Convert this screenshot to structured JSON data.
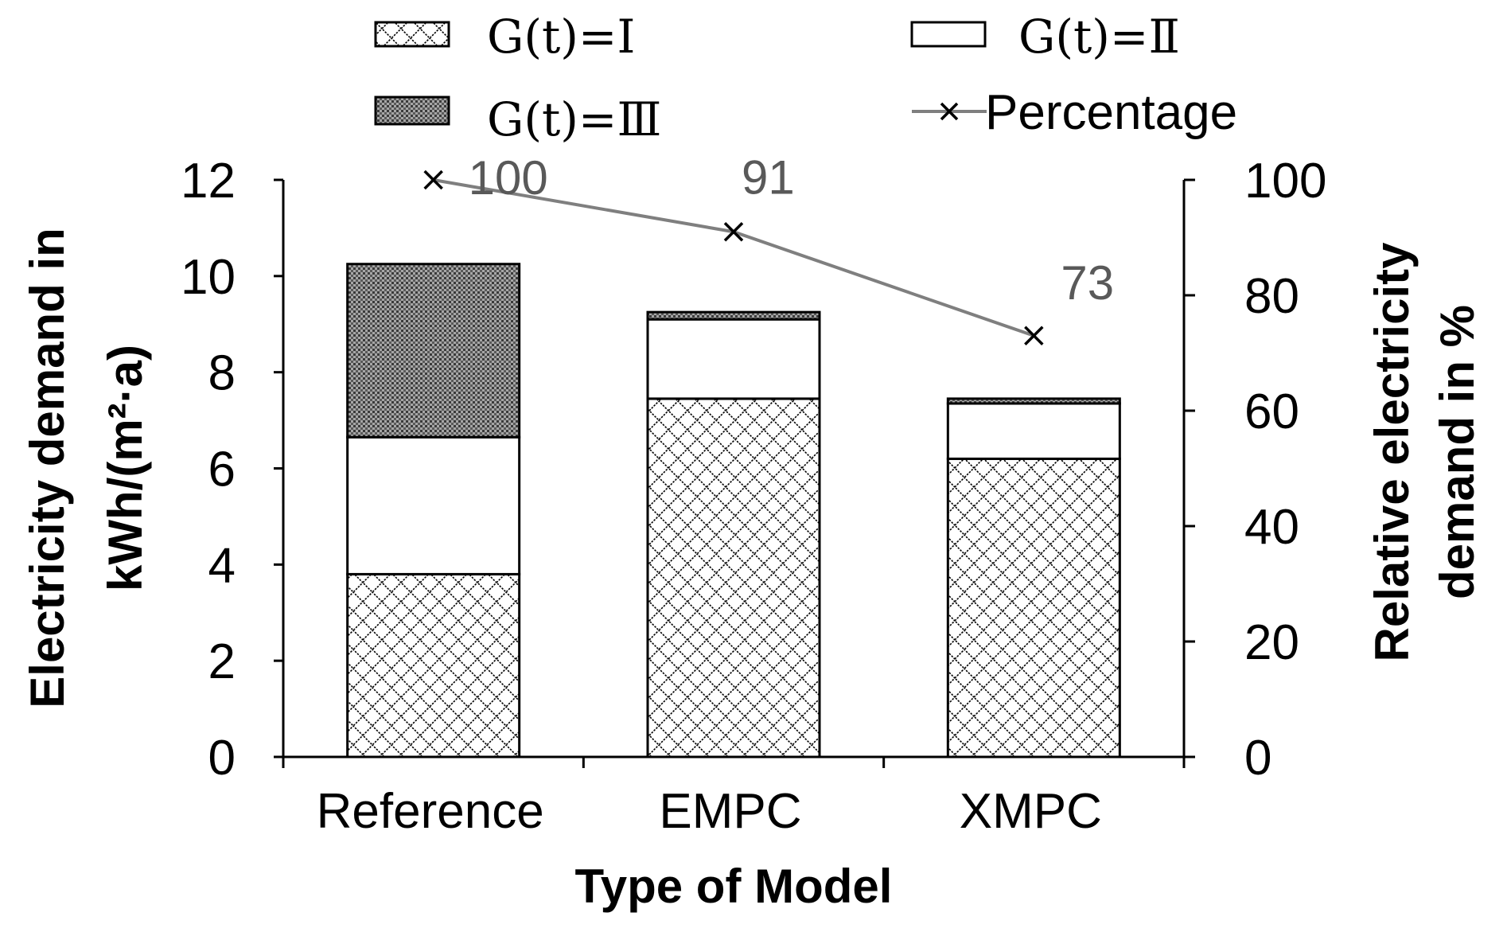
{
  "chart_data": {
    "type": "bar",
    "stacked": true,
    "categories": [
      "Reference",
      "EMPC",
      "XMPC"
    ],
    "series": [
      {
        "name": "G(t)=Ⅰ",
        "pattern": "crosshatch",
        "values": [
          3.8,
          7.45,
          6.2
        ]
      },
      {
        "name": "G(t)=Ⅱ",
        "pattern": "white",
        "values": [
          2.85,
          1.65,
          1.15
        ]
      },
      {
        "name": "G(t)=Ⅲ",
        "pattern": "dotted",
        "values": [
          3.6,
          0.15,
          0.1
        ]
      }
    ],
    "line_series": {
      "name": "Percentage",
      "axis": "right",
      "values": [
        100,
        91,
        73
      ],
      "labels": [
        "100",
        "91",
        "73"
      ],
      "color": "#7f7f7f"
    },
    "xlabel": "Type of Model",
    "ylabel_left": [
      "Electricity demand in",
      "kWh/(m²·a)"
    ],
    "ylabel_right": [
      "Relative electricity",
      "demand in %"
    ],
    "ylim_left": [
      0,
      12
    ],
    "ylim_right": [
      0,
      100
    ],
    "yticks_left": [
      "0",
      "2",
      "4",
      "6",
      "8",
      "10",
      "12"
    ],
    "yticks_right": [
      "0",
      "20",
      "40",
      "60",
      "80",
      "100"
    ],
    "legend_position": "top",
    "grid": false
  }
}
